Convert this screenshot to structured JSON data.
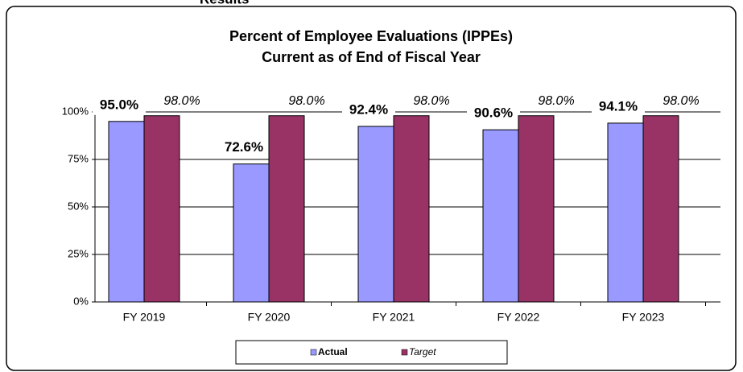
{
  "heading": "Results",
  "chart_data": {
    "type": "bar",
    "title": [
      "Percent of Employee Evaluations (IPPEs)",
      "Current as of End of Fiscal Year"
    ],
    "categories": [
      "FY 2019",
      "FY 2020",
      "FY 2021",
      "FY 2022",
      "FY 2023"
    ],
    "series": [
      {
        "name": "Actual",
        "color": "#9999ff",
        "values": [
          95.0,
          72.6,
          92.4,
          90.6,
          94.1
        ],
        "value_labels": [
          "95.0%",
          "72.6%",
          "92.4%",
          "90.6%",
          "94.1%"
        ]
      },
      {
        "name": "Target",
        "color": "#993366",
        "values": [
          98.0,
          98.0,
          98.0,
          98.0,
          98.0
        ],
        "value_labels": [
          "98.0%",
          "98.0%",
          "98.0%",
          "98.0%",
          "98.0%"
        ]
      }
    ],
    "ylim": [
      0,
      100
    ],
    "yticks": [
      {
        "value": 0,
        "label": "0%"
      },
      {
        "value": 25,
        "label": "25%"
      },
      {
        "value": 50,
        "label": "50%"
      },
      {
        "value": 75,
        "label": "75%"
      },
      {
        "value": 100,
        "label": "100%"
      }
    ],
    "grid": true,
    "legend": "bottom"
  }
}
